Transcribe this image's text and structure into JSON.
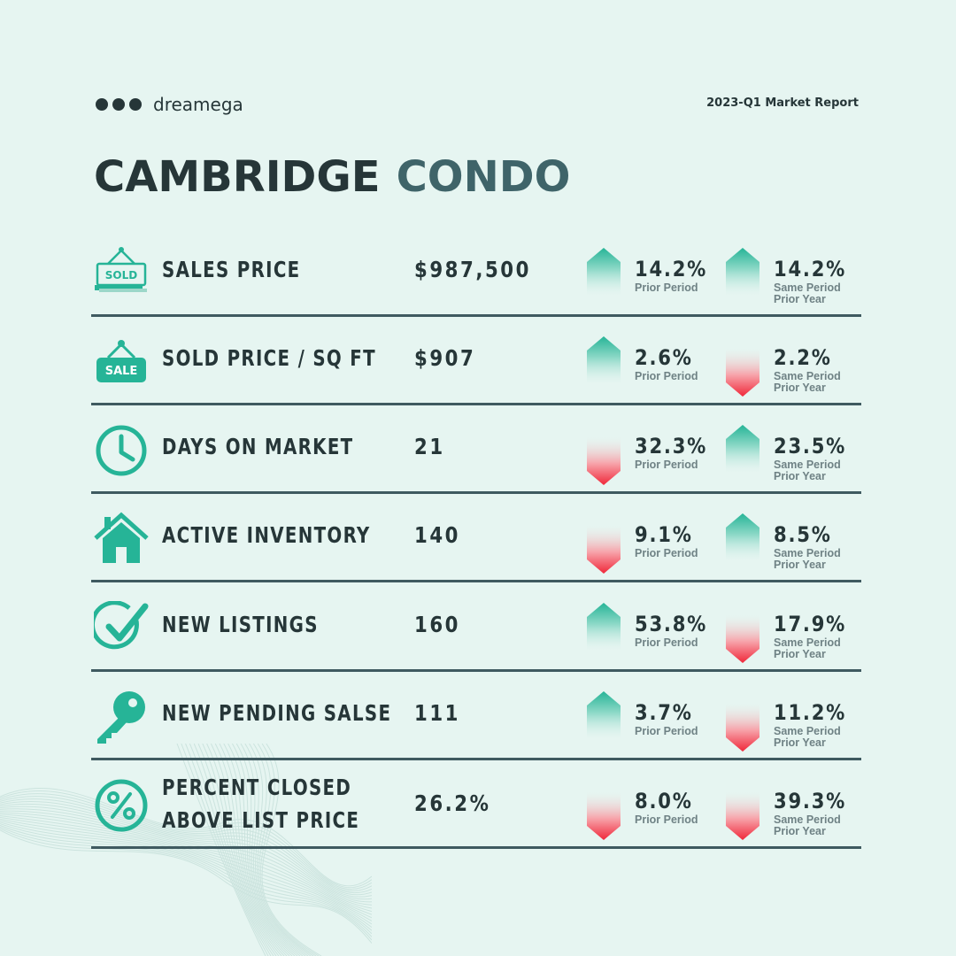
{
  "brand": "dreamega",
  "report_title": "2023-Q1 Market Report",
  "title": {
    "part1": "CAMBRIDGE",
    "part2": "CONDO"
  },
  "colors": {
    "accent": "#26b497",
    "down": "#f0283a",
    "dark": "#263638",
    "title_accent": "#3f6469",
    "background": "#e6f5f1"
  },
  "rows": [
    {
      "icon": "sold-sign-icon",
      "icon_text": "SOLD",
      "label": [
        "SALES PRICE"
      ],
      "value": "$987,500",
      "prior": {
        "dir": "up",
        "pct": "14.2%",
        "caption": [
          "Prior Period"
        ]
      },
      "year": {
        "dir": "up",
        "pct": "14.2%",
        "caption": [
          "Same Period",
          "Prior Year"
        ]
      }
    },
    {
      "icon": "sale-tag-icon",
      "icon_text": "SALE",
      "label": [
        "SOLD PRICE / SQ FT"
      ],
      "value": "$907",
      "prior": {
        "dir": "up",
        "pct": "2.6%",
        "caption": [
          "Prior Period"
        ]
      },
      "year": {
        "dir": "down",
        "pct": "2.2%",
        "caption": [
          "Same Period",
          "Prior Year"
        ]
      }
    },
    {
      "icon": "clock-icon",
      "label": [
        "DAYS ON MARKET"
      ],
      "value": "21",
      "prior": {
        "dir": "down",
        "pct": "32.3%",
        "caption": [
          "Prior Period"
        ]
      },
      "year": {
        "dir": "up",
        "pct": "23.5%",
        "caption": [
          "Same Period",
          "Prior Year"
        ]
      }
    },
    {
      "icon": "house-icon",
      "label": [
        "ACTIVE INVENTORY"
      ],
      "value": "140",
      "prior": {
        "dir": "down",
        "pct": "9.1%",
        "caption": [
          "Prior Period"
        ]
      },
      "year": {
        "dir": "up",
        "pct": "8.5%",
        "caption": [
          "Same Period",
          "Prior Year"
        ]
      }
    },
    {
      "icon": "checkmark-icon",
      "label": [
        "NEW LISTINGS"
      ],
      "value": "160",
      "prior": {
        "dir": "up",
        "pct": "53.8%",
        "caption": [
          "Prior Period"
        ]
      },
      "year": {
        "dir": "down",
        "pct": "17.9%",
        "caption": [
          "Same Period",
          "Prior Year"
        ]
      }
    },
    {
      "icon": "key-icon",
      "label": [
        "NEW PENDING SALSE"
      ],
      "value": "111",
      "prior": {
        "dir": "up",
        "pct": "3.7%",
        "caption": [
          "Prior Period"
        ]
      },
      "year": {
        "dir": "down",
        "pct": "11.2%",
        "caption": [
          "Same Period",
          "Prior Year"
        ]
      }
    },
    {
      "icon": "percent-icon",
      "label": [
        "PERCENT CLOSED",
        "ABOVE LIST PRICE"
      ],
      "value": "26.2%",
      "prior": {
        "dir": "down",
        "pct": "8.0%",
        "caption": [
          "Prior Period"
        ]
      },
      "year": {
        "dir": "down",
        "pct": "39.3%",
        "caption": [
          "Same Period",
          "Prior Year"
        ]
      }
    }
  ]
}
